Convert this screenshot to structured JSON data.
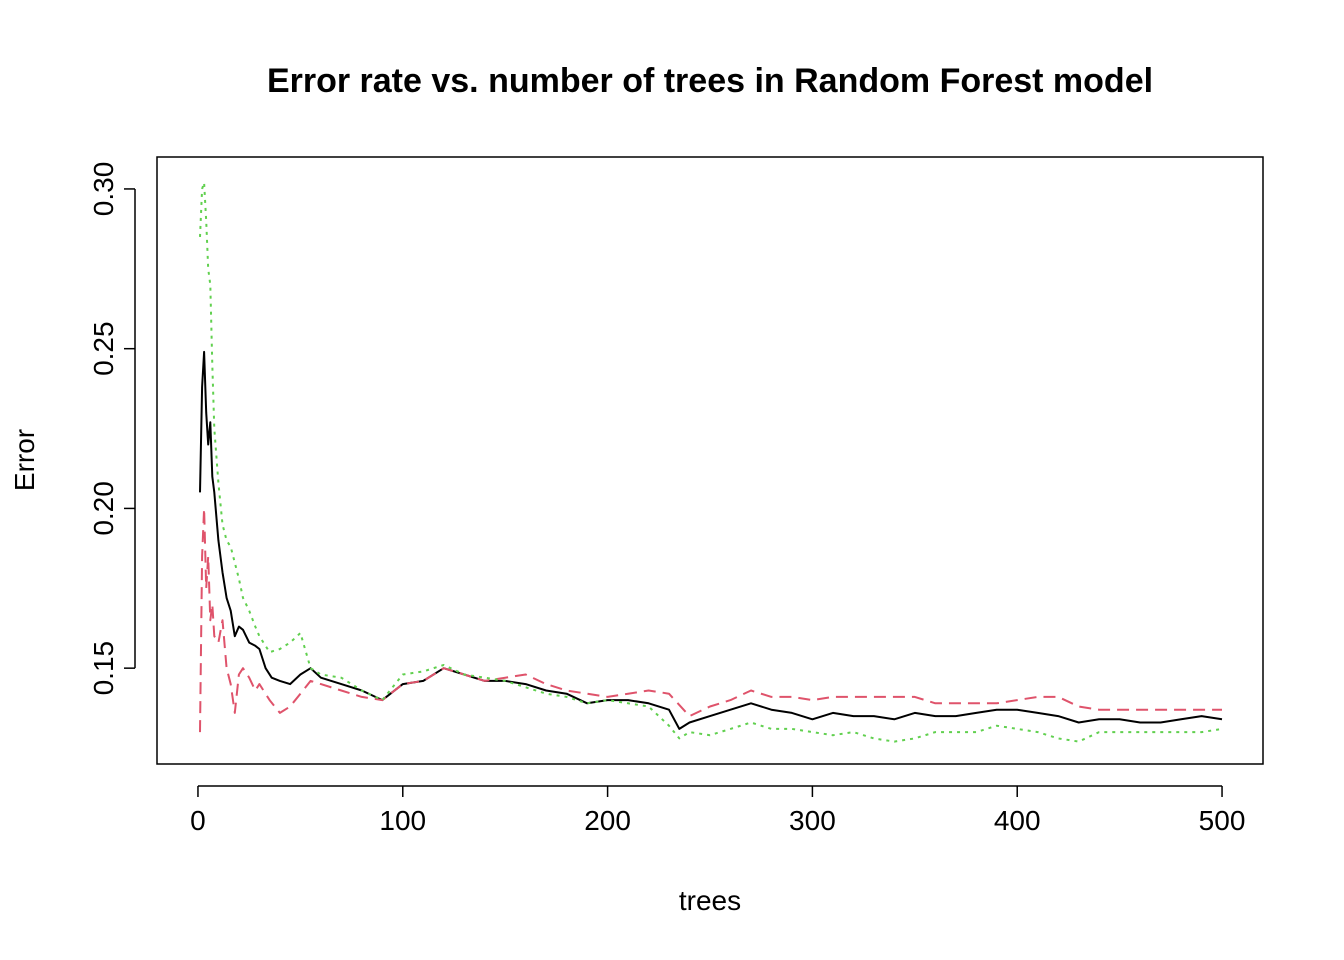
{
  "chart_data": {
    "type": "line",
    "title": "Error rate vs. number of trees in Random Forest model",
    "xlabel": "trees",
    "ylabel": "Error",
    "xlim": [
      -20,
      520
    ],
    "ylim": [
      0.12,
      0.31
    ],
    "xticks": [
      0,
      100,
      200,
      300,
      400,
      500
    ],
    "yticks": [
      0.15,
      0.2,
      0.25,
      0.3
    ],
    "xtick_labels": [
      "0",
      "100",
      "200",
      "300",
      "400",
      "500"
    ],
    "ytick_labels": [
      "0.15",
      "0.20",
      "0.25",
      "0.30"
    ],
    "grid": false,
    "legend": "none",
    "series": [
      {
        "color": "#000000",
        "dash": "solid",
        "x": [
          1,
          2,
          3,
          4,
          5,
          6,
          7,
          8,
          10,
          12,
          14,
          16,
          18,
          20,
          22,
          25,
          28,
          30,
          33,
          36,
          40,
          45,
          50,
          55,
          60,
          70,
          80,
          90,
          100,
          110,
          120,
          130,
          140,
          150,
          160,
          170,
          180,
          190,
          200,
          210,
          220,
          230,
          235,
          240,
          250,
          260,
          270,
          280,
          290,
          300,
          310,
          320,
          330,
          340,
          350,
          360,
          370,
          380,
          390,
          400,
          410,
          420,
          430,
          440,
          450,
          460,
          470,
          480,
          490,
          500
        ],
        "y": [
          0.205,
          0.238,
          0.249,
          0.23,
          0.22,
          0.227,
          0.21,
          0.205,
          0.19,
          0.18,
          0.172,
          0.168,
          0.16,
          0.163,
          0.162,
          0.158,
          0.157,
          0.156,
          0.15,
          0.147,
          0.146,
          0.145,
          0.148,
          0.15,
          0.147,
          0.145,
          0.143,
          0.14,
          0.145,
          0.146,
          0.15,
          0.148,
          0.146,
          0.146,
          0.145,
          0.143,
          0.142,
          0.139,
          0.14,
          0.14,
          0.139,
          0.137,
          0.131,
          0.133,
          0.135,
          0.137,
          0.139,
          0.137,
          0.136,
          0.134,
          0.136,
          0.135,
          0.135,
          0.134,
          0.136,
          0.135,
          0.135,
          0.136,
          0.137,
          0.137,
          0.136,
          0.135,
          0.133,
          0.134,
          0.134,
          0.133,
          0.133,
          0.134,
          0.135,
          0.134
        ]
      },
      {
        "color": "#df536b",
        "dash": "dashed",
        "x": [
          1,
          2,
          3,
          4,
          5,
          6,
          7,
          8,
          10,
          12,
          14,
          16,
          18,
          20,
          22,
          25,
          28,
          30,
          35,
          40,
          45,
          50,
          55,
          60,
          70,
          80,
          90,
          100,
          110,
          120,
          130,
          140,
          150,
          160,
          170,
          180,
          190,
          200,
          210,
          220,
          230,
          240,
          250,
          260,
          270,
          280,
          290,
          300,
          310,
          320,
          330,
          340,
          350,
          360,
          370,
          380,
          390,
          400,
          410,
          420,
          430,
          440,
          450,
          460,
          470,
          480,
          490,
          500
        ],
        "y": [
          0.13,
          0.185,
          0.2,
          0.175,
          0.185,
          0.165,
          0.17,
          0.16,
          0.158,
          0.165,
          0.15,
          0.145,
          0.136,
          0.148,
          0.15,
          0.147,
          0.143,
          0.145,
          0.14,
          0.136,
          0.138,
          0.142,
          0.146,
          0.145,
          0.143,
          0.141,
          0.14,
          0.145,
          0.146,
          0.15,
          0.148,
          0.146,
          0.147,
          0.148,
          0.145,
          0.143,
          0.142,
          0.141,
          0.142,
          0.143,
          0.142,
          0.135,
          0.138,
          0.14,
          0.143,
          0.141,
          0.141,
          0.14,
          0.141,
          0.141,
          0.141,
          0.141,
          0.141,
          0.139,
          0.139,
          0.139,
          0.139,
          0.14,
          0.141,
          0.141,
          0.138,
          0.137,
          0.137,
          0.137,
          0.137,
          0.137,
          0.137,
          0.137
        ]
      },
      {
        "color": "#61d04f",
        "dash": "dotted",
        "x": [
          1,
          2,
          3,
          4,
          5,
          6,
          7,
          8,
          10,
          12,
          14,
          16,
          18,
          20,
          22,
          25,
          28,
          30,
          35,
          40,
          45,
          50,
          55,
          60,
          70,
          80,
          90,
          100,
          110,
          120,
          130,
          140,
          150,
          160,
          170,
          180,
          190,
          200,
          210,
          220,
          230,
          235,
          240,
          250,
          260,
          270,
          280,
          290,
          300,
          310,
          320,
          330,
          340,
          350,
          360,
          370,
          380,
          390,
          400,
          410,
          420,
          430,
          440,
          450,
          460,
          470,
          480,
          490,
          500
        ],
        "y": [
          0.285,
          0.3,
          0.302,
          0.29,
          0.275,
          0.27,
          0.245,
          0.225,
          0.208,
          0.195,
          0.19,
          0.188,
          0.183,
          0.178,
          0.172,
          0.168,
          0.163,
          0.16,
          0.155,
          0.156,
          0.158,
          0.161,
          0.15,
          0.148,
          0.147,
          0.143,
          0.14,
          0.148,
          0.149,
          0.151,
          0.148,
          0.147,
          0.146,
          0.144,
          0.142,
          0.141,
          0.139,
          0.14,
          0.139,
          0.138,
          0.132,
          0.128,
          0.13,
          0.129,
          0.131,
          0.133,
          0.131,
          0.131,
          0.13,
          0.129,
          0.13,
          0.128,
          0.127,
          0.128,
          0.13,
          0.13,
          0.13,
          0.132,
          0.131,
          0.13,
          0.128,
          0.127,
          0.13,
          0.13,
          0.13,
          0.13,
          0.13,
          0.13,
          0.131
        ]
      }
    ]
  }
}
